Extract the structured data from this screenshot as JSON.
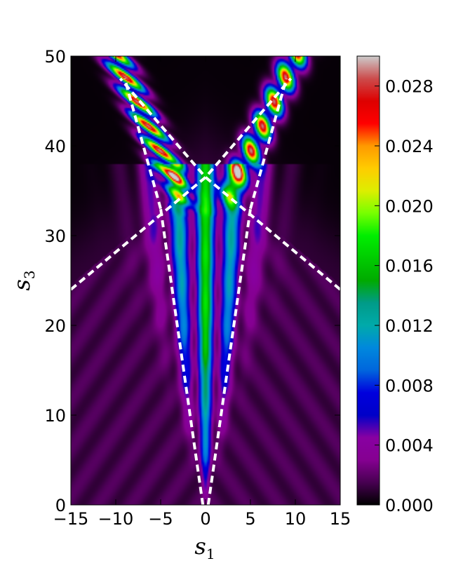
{
  "chart_data": {
    "type": "heatmap",
    "title": "",
    "xlabel": {
      "base": "s",
      "sub": "1"
    },
    "ylabel": {
      "base": "s",
      "sub": "3"
    },
    "xlim": [
      -15,
      15
    ],
    "ylim": [
      0,
      50
    ],
    "x_ticks": [
      -15,
      -10,
      -5,
      0,
      5,
      10,
      15
    ],
    "y_ticks": [
      0,
      10,
      20,
      30,
      40,
      50
    ],
    "x_tick_labels": [
      "−15",
      "−10",
      "−5",
      "0",
      "5",
      "10",
      "15"
    ],
    "y_tick_labels": [
      "0",
      "10",
      "20",
      "30",
      "40",
      "50"
    ],
    "colorbar": {
      "min": 0.0,
      "max": 0.03,
      "ticks": [
        0.0,
        0.004,
        0.008,
        0.012,
        0.016,
        0.02,
        0.024,
        0.028
      ],
      "tick_labels": [
        "0.000",
        "0.004",
        "0.008",
        "0.012",
        "0.016",
        "0.020",
        "0.024",
        "0.028"
      ],
      "colormap": "nipy_spectral",
      "stops": [
        {
          "v": 0.0,
          "color": "#000000"
        },
        {
          "v": 0.05,
          "color": "#470051"
        },
        {
          "v": 0.1,
          "color": "#850091"
        },
        {
          "v": 0.15,
          "color": "#8800a2"
        },
        {
          "v": 0.2,
          "color": "#0000c8"
        },
        {
          "v": 0.25,
          "color": "#0000dd"
        },
        {
          "v": 0.3,
          "color": "#0066dd"
        },
        {
          "v": 0.35,
          "color": "#0088dd"
        },
        {
          "v": 0.4,
          "color": "#00aaaa"
        },
        {
          "v": 0.45,
          "color": "#009b88"
        },
        {
          "v": 0.5,
          "color": "#00aa00"
        },
        {
          "v": 0.55,
          "color": "#00cc00"
        },
        {
          "v": 0.6,
          "color": "#00ee00"
        },
        {
          "v": 0.65,
          "color": "#77ff00"
        },
        {
          "v": 0.7,
          "color": "#ddee00"
        },
        {
          "v": 0.75,
          "color": "#ffcc00"
        },
        {
          "v": 0.8,
          "color": "#ff9900"
        },
        {
          "v": 0.85,
          "color": "#ff0000"
        },
        {
          "v": 0.9,
          "color": "#dd0000"
        },
        {
          "v": 0.95,
          "color": "#cc4c4c"
        },
        {
          "v": 1.0,
          "color": "#cccccc"
        }
      ]
    },
    "background_intensity": 0.0017,
    "beams": [
      {
        "name": "central",
        "from": [
          0,
          0
        ],
        "to": [
          0,
          36
        ],
        "peak": 0.016
      },
      {
        "name": "left-upper",
        "from": [
          -2.5,
          34
        ],
        "to": [
          -10,
          50
        ],
        "peak": 0.029
      },
      {
        "name": "right-upper",
        "from": [
          2.5,
          34
        ],
        "to": [
          10,
          50
        ],
        "peak": 0.029
      }
    ],
    "dashed_lines": [
      {
        "name": "left-caustic-lower",
        "points": [
          [
            -0.3,
            0
          ],
          [
            -5,
            33
          ]
        ]
      },
      {
        "name": "right-caustic-lower",
        "points": [
          [
            0.3,
            0
          ],
          [
            5,
            33
          ]
        ]
      },
      {
        "name": "left-caustic-upper",
        "points": [
          [
            -5,
            33
          ],
          [
            -9,
            47.5
          ]
        ]
      },
      {
        "name": "right-caustic-upper",
        "points": [
          [
            5,
            33
          ],
          [
            9,
            47.5
          ]
        ]
      },
      {
        "name": "left-shadow-boundary",
        "points": [
          [
            -15,
            24
          ],
          [
            0,
            36.5
          ],
          [
            9.5,
            47.5
          ]
        ]
      },
      {
        "name": "right-shadow-boundary",
        "points": [
          [
            15,
            24
          ],
          [
            0,
            36.5
          ],
          [
            -9.5,
            47.5
          ]
        ]
      }
    ]
  }
}
